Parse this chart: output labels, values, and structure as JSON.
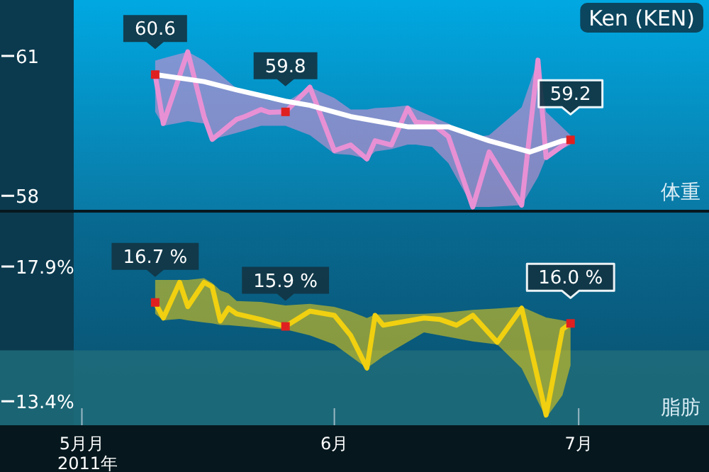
{
  "chart_data": [
    {
      "type": "line",
      "title": "Ken (KEN)",
      "ylabel": "体重",
      "xlim": [
        "2011-04-30",
        "2011-07-17"
      ],
      "ylim": [
        57.7,
        62.2
      ],
      "yticks": [
        61,
        58
      ],
      "tick_labels": "y",
      "series": [
        {
          "color": "#e890d4",
          "x": [
            "2011-05-10",
            "2011-05-11",
            "2011-05-14",
            "2011-05-16",
            "2011-05-17",
            "2011-05-20",
            "2011-05-21",
            "2011-05-23",
            "2011-05-24",
            "2011-05-26",
            "2011-05-29",
            "2011-06-01",
            "2011-06-03",
            "2011-06-05",
            "2011-06-06",
            "2011-06-08",
            "2011-06-10",
            "2011-06-11",
            "2011-06-13",
            "2011-06-15",
            "2011-06-18",
            "2011-06-20",
            "2011-06-24",
            "2011-06-26",
            "2011-06-27",
            "2011-06-30"
          ],
          "values": [
            60.6,
            59.55,
            61.09,
            59.7,
            59.21,
            59.64,
            59.7,
            59.85,
            59.79,
            59.8,
            60.33,
            58.97,
            59.09,
            58.79,
            59.18,
            59.09,
            59.88,
            59.58,
            59.55,
            59.27,
            57.76,
            58.94,
            57.8,
            60.91,
            58.82,
            59.2
          ],
          "upper": [
            60.9,
            60.95,
            61.09,
            60.9,
            60.75,
            60.3,
            60.25,
            60.1,
            60.05,
            60.0,
            60.33,
            60.1,
            59.85,
            59.85,
            59.88,
            59.9,
            59.94,
            59.85,
            59.7,
            59.55,
            59.25,
            59.3,
            59.9,
            60.91,
            59.8,
            59.3
          ],
          "lower": [
            59.8,
            59.5,
            59.6,
            59.55,
            59.21,
            59.35,
            59.4,
            59.5,
            59.5,
            59.5,
            59.3,
            58.9,
            58.88,
            58.79,
            58.95,
            59.0,
            59.1,
            59.1,
            59.05,
            58.7,
            57.76,
            57.76,
            57.8,
            58.4,
            58.82,
            59.1
          ]
        },
        {
          "color": "#ffffff",
          "x": [
            "2011-05-10",
            "2011-05-16",
            "2011-05-20",
            "2011-05-26",
            "2011-05-29",
            "2011-06-03",
            "2011-06-10",
            "2011-06-15",
            "2011-06-20",
            "2011-06-25",
            "2011-06-29",
            "2011-06-30"
          ],
          "values": [
            60.6,
            60.45,
            60.27,
            60.03,
            59.94,
            59.7,
            59.48,
            59.48,
            59.18,
            58.94,
            59.18,
            59.2
          ]
        }
      ],
      "annotations": [
        {
          "text": "60.6",
          "x": "2011-05-10",
          "y": 60.6
        },
        {
          "text": "59.8",
          "x": "2011-05-26",
          "y": 59.8
        },
        {
          "text": "59.2",
          "x": "2011-06-30",
          "y": 59.2
        }
      ]
    },
    {
      "type": "line",
      "ylabel": "脂肪",
      "xlabel": "2011年",
      "xlim": [
        "2011-04-30",
        "2011-07-17"
      ],
      "ylim": [
        12.6,
        19.7
      ],
      "yticks": [
        {
          "value": 17.9,
          "label": "17.9%"
        },
        {
          "value": 13.4,
          "label": "13.4%"
        }
      ],
      "xticks": [
        {
          "value": "2011-05-01",
          "label": "5月月"
        },
        {
          "value": "2011-06-01",
          "label": "6月"
        },
        {
          "value": "2011-07-01",
          "label": "7月"
        }
      ],
      "bands": [
        {
          "axis": "y",
          "from": 12.6,
          "to": 15.1,
          "color": "#1f6c7a"
        }
      ],
      "series": [
        {
          "color": "#f0d010",
          "x": [
            "2011-05-10",
            "2011-05-11",
            "2011-05-13",
            "2011-05-14",
            "2011-05-16",
            "2011-05-17",
            "2011-05-18",
            "2011-05-19",
            "2011-05-20",
            "2011-05-23",
            "2011-05-26",
            "2011-05-29",
            "2011-06-01",
            "2011-06-03",
            "2011-06-05",
            "2011-06-06",
            "2011-06-07",
            "2011-06-12",
            "2011-06-14",
            "2011-06-16",
            "2011-06-18",
            "2011-06-21",
            "2011-06-24",
            "2011-06-27",
            "2011-06-29",
            "2011-06-30"
          ],
          "values": [
            16.7,
            16.18,
            17.37,
            16.56,
            17.37,
            17.22,
            16.08,
            16.51,
            16.32,
            16.13,
            15.9,
            16.41,
            16.27,
            15.6,
            14.51,
            16.27,
            15.94,
            16.18,
            16.13,
            15.94,
            16.27,
            15.37,
            16.51,
            12.94,
            15.8,
            16.0
          ],
          "upper": [
            17.45,
            17.45,
            17.45,
            17.45,
            17.51,
            17.35,
            17.1,
            17.0,
            16.75,
            16.72,
            16.6,
            16.65,
            16.55,
            16.4,
            16.18,
            16.3,
            16.3,
            16.32,
            16.35,
            16.4,
            16.45,
            16.5,
            16.56,
            16.2,
            16.1,
            16.03
          ],
          "lower": [
            16.32,
            16.1,
            16.15,
            16.1,
            16.03,
            16.0,
            15.95,
            15.94,
            15.92,
            15.85,
            15.8,
            15.6,
            15.3,
            14.9,
            14.51,
            14.7,
            14.9,
            15.7,
            15.6,
            15.5,
            15.4,
            15.3,
            14.5,
            12.84,
            13.6,
            14.6
          ]
        }
      ],
      "annotations": [
        {
          "text": "16.7 %",
          "x": "2011-05-10",
          "y": 16.7
        },
        {
          "text": "15.9 %",
          "x": "2011-05-26",
          "y": 15.9
        },
        {
          "text": "16.0 %",
          "x": "2011-06-30",
          "y": 16.0
        }
      ]
    }
  ]
}
